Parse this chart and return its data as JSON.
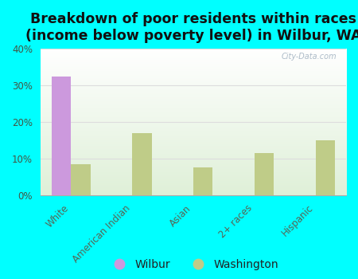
{
  "title": "Breakdown of poor residents within races\n(income below poverty level) in Wilbur, WA",
  "categories": [
    "White",
    "American Indian",
    "Asian",
    "2+ races",
    "Hispanic"
  ],
  "wilbur_values": [
    32.4,
    0,
    0,
    0,
    0
  ],
  "washington_values": [
    8.5,
    17.0,
    7.5,
    11.5,
    15.0
  ],
  "wilbur_color": "#cc99dd",
  "washington_color": "#bfcc88",
  "background_color": "#00ffff",
  "plot_bg_color_top": "#f0faf0",
  "plot_bg_color_bottom": "#ffffff",
  "ylim": [
    0,
    40
  ],
  "yticks": [
    0,
    10,
    20,
    30,
    40
  ],
  "ytick_labels": [
    "0%",
    "10%",
    "20%",
    "30%",
    "40%"
  ],
  "bar_width": 0.32,
  "title_fontsize": 12.5,
  "tick_fontsize": 8.5,
  "legend_fontsize": 10,
  "watermark": "City-Data.com",
  "xlabel_color": "#556655",
  "ylabel_color": "#445544",
  "grid_color": "#dddddd"
}
